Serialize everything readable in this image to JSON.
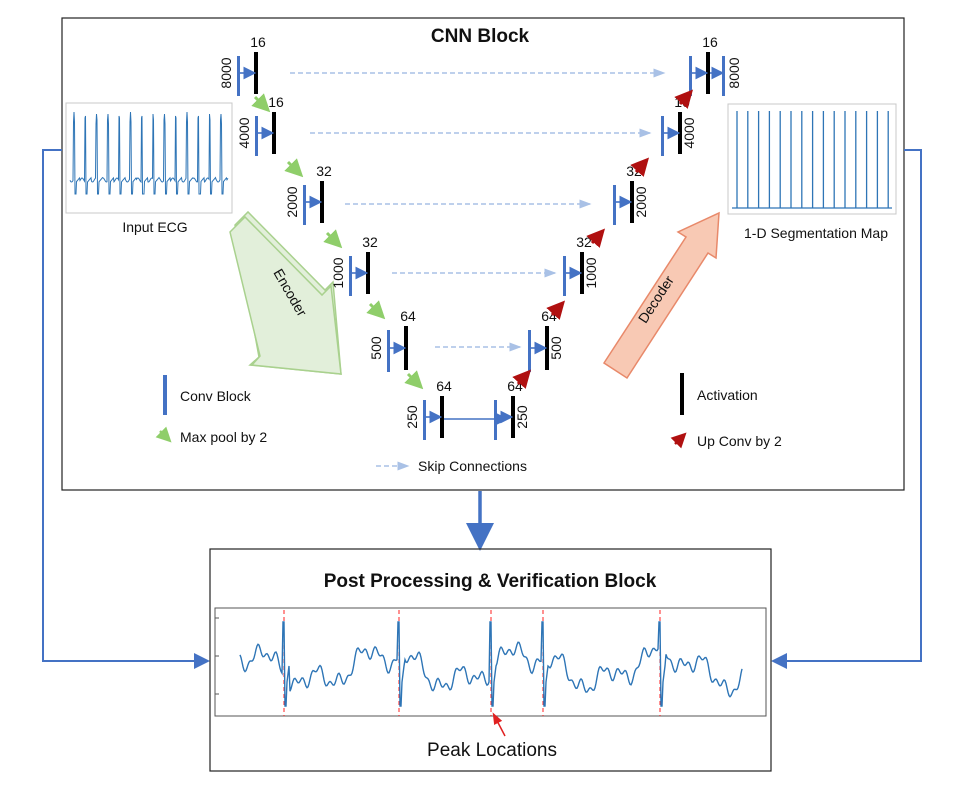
{
  "cnn_block": {
    "title": "CNN Block"
  },
  "input": {
    "label": "Input ECG"
  },
  "output": {
    "label": "1-D Segmentation Map"
  },
  "encoder": {
    "label": "Encoder",
    "levels": [
      {
        "length": "8000",
        "channels": "16"
      },
      {
        "length": "4000",
        "channels": "16"
      },
      {
        "length": "2000",
        "channels": "32"
      },
      {
        "length": "1000",
        "channels": "32"
      },
      {
        "length": "500",
        "channels": "64"
      },
      {
        "length": "250",
        "channels": "64"
      }
    ]
  },
  "decoder": {
    "label": "Decoder",
    "levels": [
      {
        "length": "250",
        "channels": "64"
      },
      {
        "length": "500",
        "channels": "64"
      },
      {
        "length": "1000",
        "channels": "32"
      },
      {
        "length": "2000",
        "channels": "32"
      },
      {
        "length": "4000",
        "channels": "16"
      },
      {
        "length": "8000",
        "channels": "16"
      }
    ]
  },
  "legend": {
    "conv_block": "Conv Block",
    "activation": "Activation",
    "max_pool": "Max pool by 2",
    "up_conv": "Up Conv by 2",
    "skip": "Skip Connections"
  },
  "post_block": {
    "title": "Post Processing & Verification Block"
  },
  "peak_label": "Peak Locations",
  "colors": {
    "conv": "#4472c4",
    "activation": "#000000",
    "skip": "#a9c1e6",
    "maxpool": "#8fce6a",
    "upconv": "#b01010",
    "signal": "#2e75b6",
    "encoder_fill": "#e2efda",
    "encoder_stroke": "#a9d18e",
    "decoder_fill": "#f8c9b4",
    "decoder_stroke": "#e8896a",
    "peak_line": "#ff2020"
  }
}
